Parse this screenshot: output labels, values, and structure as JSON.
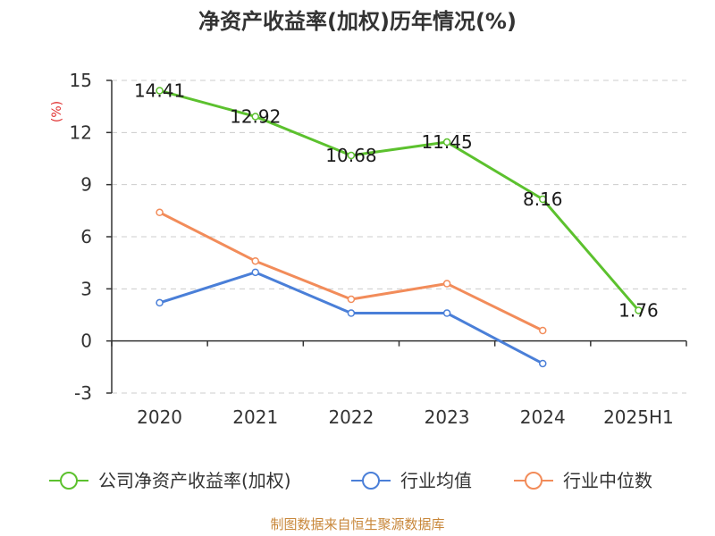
{
  "chart_data": {
    "type": "line",
    "title": "净资产收益率(加权)历年情况(%)",
    "ylabel": "(%)",
    "categories": [
      "2020",
      "2021",
      "2022",
      "2023",
      "2024",
      "2025H1"
    ],
    "ylim": [
      -3,
      15
    ],
    "yticks": [
      "15",
      "12",
      "9",
      "6",
      "3",
      "0",
      "-3"
    ],
    "grid": true,
    "legend_position": "bottom",
    "series": [
      {
        "name": "公司净资产收益率(加权)",
        "color": "#5cc12e",
        "values": [
          14.41,
          12.92,
          10.68,
          11.45,
          8.16,
          1.76
        ],
        "labels": [
          "14.41",
          "12.92",
          "10.68",
          "11.45",
          "8.16",
          "1.76"
        ]
      },
      {
        "name": "行业均值",
        "color": "#4a7fd8",
        "values": [
          2.2,
          3.95,
          1.6,
          1.6,
          -1.3,
          null
        ]
      },
      {
        "name": "行业中位数",
        "color": "#f28c5a",
        "values": [
          7.4,
          4.6,
          2.4,
          3.3,
          0.6,
          null
        ]
      }
    ]
  },
  "source": {
    "text": "制图数据来自恒生聚源数据库",
    "color": "#c8873a"
  },
  "colors": {
    "ylabel": "#e03030",
    "axis": "#333333",
    "grid": "#cccccc"
  }
}
